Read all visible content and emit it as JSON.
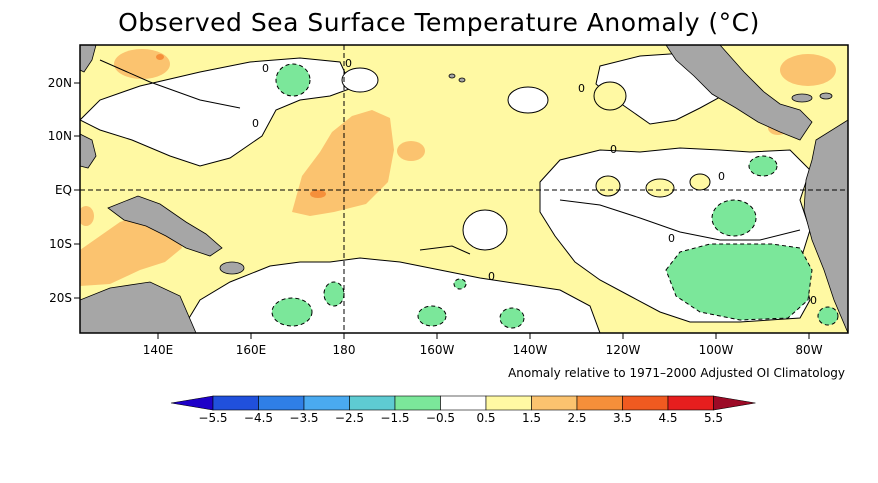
{
  "title": "Observed Sea Surface Temperature Anomaly (°C)",
  "note": "Anomaly relative to 1971–2000 Adjusted OI Climatology",
  "map": {
    "lon_range": [
      "130E",
      "70W"
    ],
    "lat_range": [
      "28S",
      "28N"
    ],
    "lon_ticks": [
      "140E",
      "160E",
      "180",
      "160W",
      "140W",
      "120W",
      "100W",
      "80W"
    ],
    "lat_ticks": [
      "20N",
      "10N",
      "EQ",
      "10S",
      "20S"
    ],
    "contour_labels": [
      "0",
      "0",
      "0",
      "0",
      "0",
      "0",
      "0",
      "0",
      "0"
    ],
    "colors": {
      "land": "#a6a6a6",
      "neutral": "#ffffff",
      "warm_0_5_to_1_5": "#fff9a3",
      "warm_1_5_to_2_5": "#fbc36f",
      "warm_2_5_to_3_5": "#f58f3a",
      "cool_m1_5_to_m0_5": "#7be79a"
    }
  },
  "colorbar": {
    "ticks": [
      "-5.5",
      "-4.5",
      "-3.5",
      "-2.5",
      "-1.5",
      "-0.5",
      "0.5",
      "1.5",
      "2.5",
      "3.5",
      "4.5",
      "5.5"
    ],
    "colors": [
      "#1e00c8",
      "#2050dc",
      "#2f7fe6",
      "#4aaaf0",
      "#5ecbd2",
      "#7be79a",
      "#ffffff",
      "#fff9a3",
      "#fbc36f",
      "#f58f3a",
      "#f05a20",
      "#e61e1e",
      "#9c0a26"
    ]
  }
}
